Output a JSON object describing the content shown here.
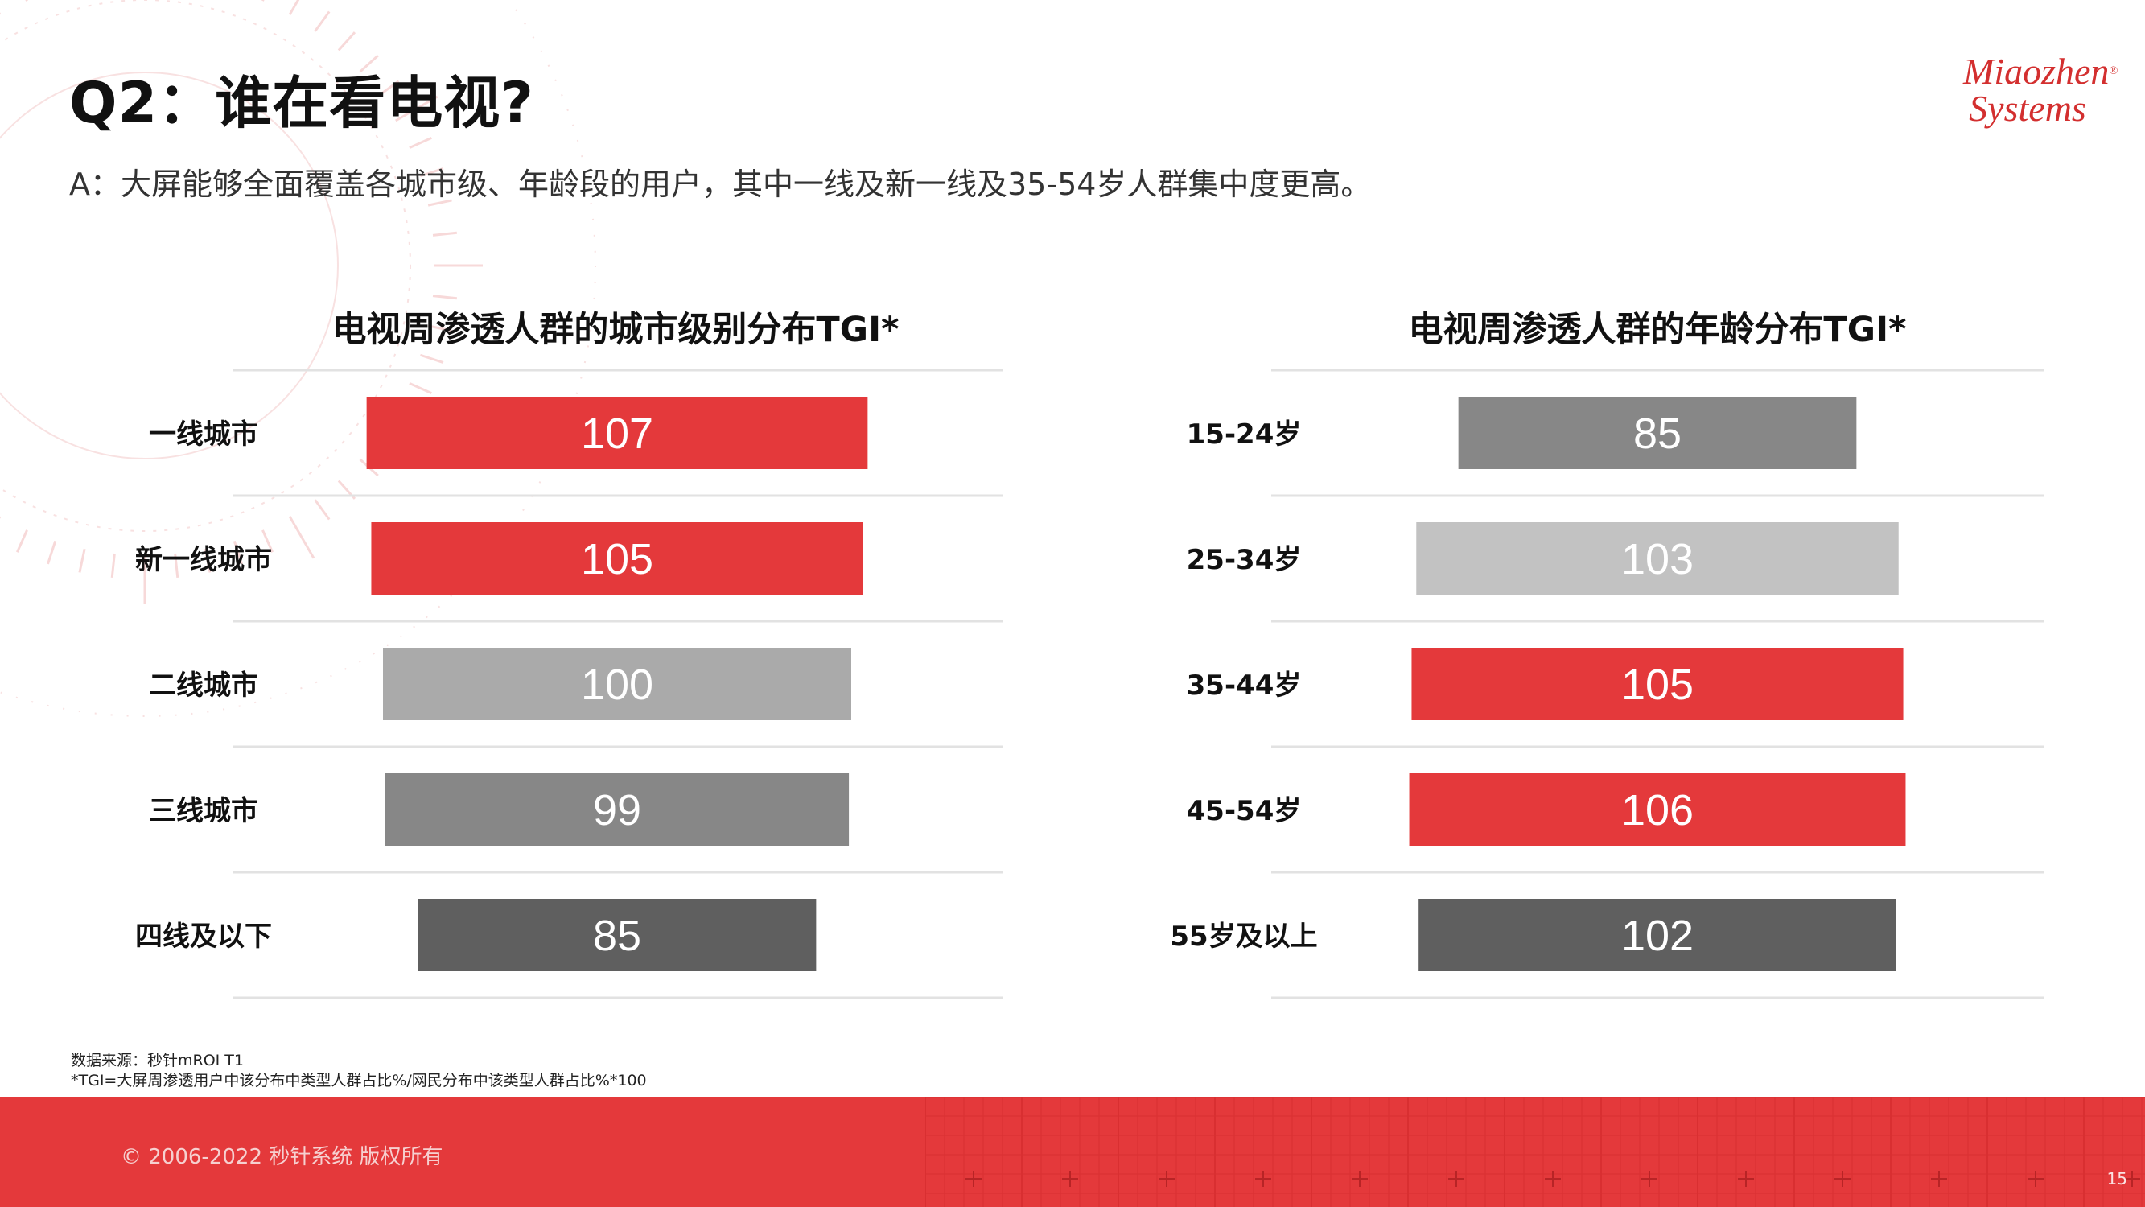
{
  "header": {
    "title": "Q2：谁在看电视?",
    "subtitle": "A：大屏能够全面覆盖各城市级、年龄段的用户，其中一线及新一线及35-54岁人群集中度更高。"
  },
  "logo": {
    "line1": "Miaozhen",
    "line2": "Systems",
    "mark": "®"
  },
  "colors": {
    "accent_red": "#e4393b",
    "gray_mid": "#878787",
    "gray_light": "#c2c2c2",
    "gray_dark": "#5f5f5f"
  },
  "chart_data": [
    {
      "type": "bar",
      "title": "电视周渗透人群的城市级别分布TGI*",
      "categories": [
        "一线城市",
        "新一线城市",
        "二线城市",
        "三线城市",
        "四线及以下"
      ],
      "values": [
        107,
        105,
        100,
        99,
        85
      ],
      "bar_colors": [
        "#e4393b",
        "#e4393b",
        "#aaaaaa",
        "#878787",
        "#5f5f5f"
      ],
      "label_colors": [
        "#ffffff",
        "#ffffff",
        "#ffffff",
        "#ffffff",
        "#ffffff"
      ],
      "orientation": "horizontal-centered",
      "grid": true,
      "legend": "none"
    },
    {
      "type": "bar",
      "title": "电视周渗透人群的年龄分布TGI*",
      "categories": [
        "15-24岁",
        "25-34岁",
        "35-44岁",
        "45-54岁",
        "55岁及以上"
      ],
      "values": [
        85,
        103,
        105,
        106,
        102
      ],
      "bar_colors": [
        "#878787",
        "#c2c2c2",
        "#e4393b",
        "#e4393b",
        "#5f5f5f"
      ],
      "label_colors": [
        "#ffffff",
        "#ffffff",
        "#ffffff",
        "#ffffff",
        "#ffffff"
      ],
      "orientation": "horizontal-centered",
      "grid": true,
      "legend": "none"
    }
  ],
  "notes": {
    "source": "数据来源：秒针mROI T1",
    "definition": "*TGI=大屏周渗透用户中该分布中类型人群占比%/网民分布中该类型人群占比%*100"
  },
  "footer": {
    "copyright": "© 2006-2022 秒针系统 版权所有",
    "page_number": "15"
  }
}
